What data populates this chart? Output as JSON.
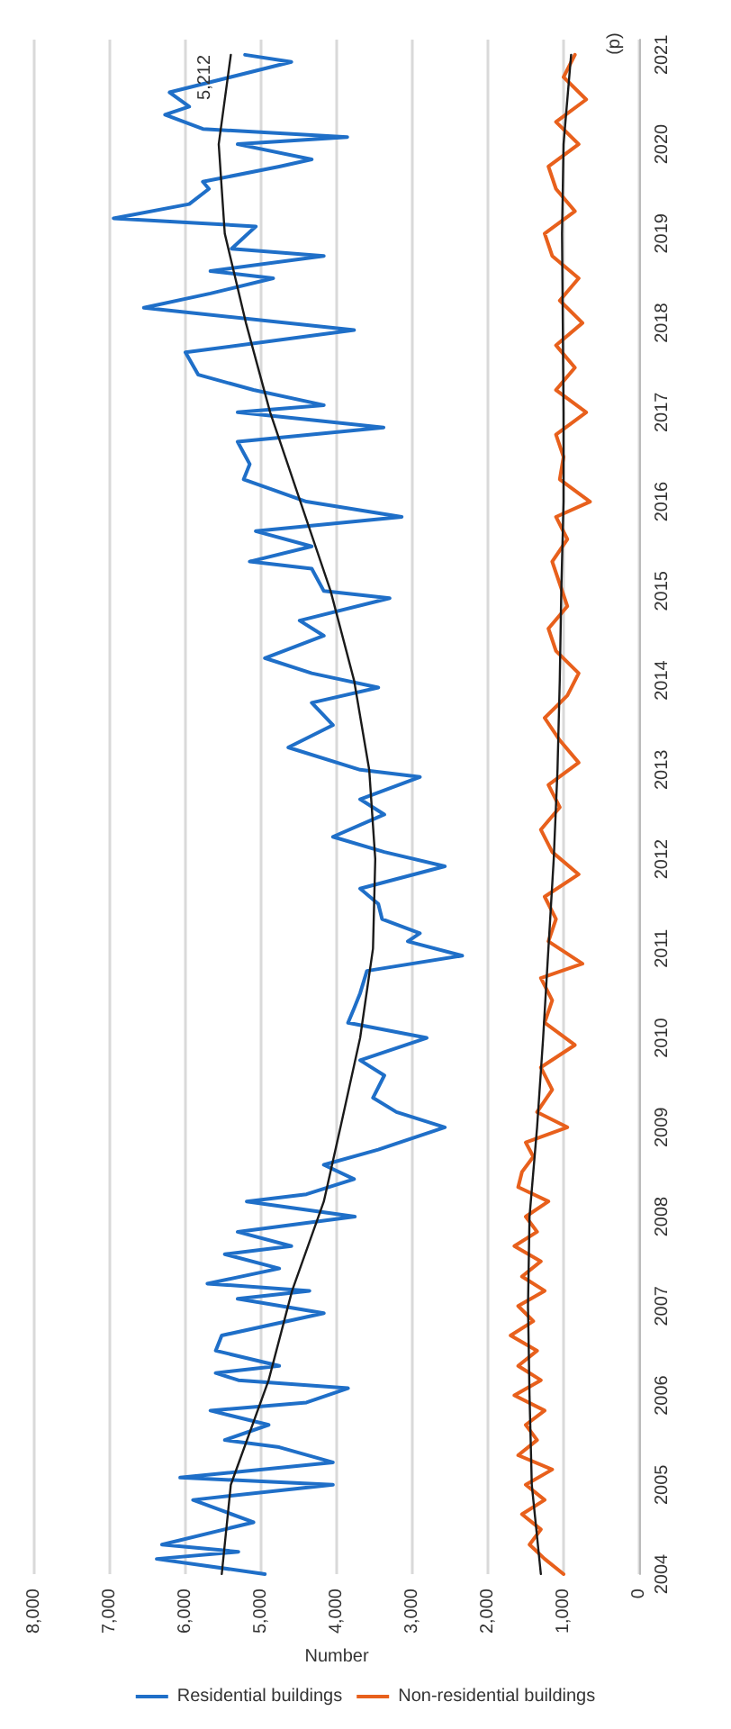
{
  "chart_data": {
    "type": "line",
    "xlabel": "Number",
    "legend": "bottom",
    "grid": "x",
    "marker": "none",
    "line_style": "solid",
    "xlim": [
      8000,
      0
    ],
    "xticks": [
      {
        "value": 8000,
        "label": "8,000"
      },
      {
        "value": 7000,
        "label": "7,000"
      },
      {
        "value": 6000,
        "label": "6,000"
      },
      {
        "value": 5000,
        "label": "5,000"
      },
      {
        "value": 4000,
        "label": "4,000"
      },
      {
        "value": 3000,
        "label": "3,000"
      },
      {
        "value": 2000,
        "label": "2,000"
      },
      {
        "value": 1000,
        "label": "1,000"
      },
      0
    ],
    "ylim": [
      2004,
      2021.17
    ],
    "yticks": [
      2004,
      2005,
      2006,
      2007,
      2008,
      2009,
      2010,
      2011,
      2012,
      2013,
      2014,
      2015,
      2016,
      2017,
      2018,
      2019,
      2020,
      2021
    ],
    "annotations": [
      {
        "text": "5,212",
        "x": 5212,
        "y": 2021
      },
      {
        "text": "(p)",
        "x": 850,
        "y": 2021
      }
    ],
    "series": [
      {
        "name": "Residential buildings",
        "color": "#1f6fc8",
        "x": [
          4950,
          6380,
          5300,
          6310,
          5100,
          5900,
          4050,
          6070,
          4050,
          4760,
          5480,
          4900,
          5670,
          4400,
          3850,
          5300,
          5600,
          4760,
          5600,
          5520,
          4170,
          5310,
          4360,
          5710,
          4760,
          5480,
          4600,
          5310,
          3760,
          5190,
          4400,
          3770,
          4170,
          3450,
          2570,
          3210,
          3520,
          3370,
          3690,
          2810,
          3850,
          3770,
          3690,
          3600,
          2340,
          3060,
          2900,
          3400,
          3450,
          3690,
          2570,
          3370,
          4050,
          3370,
          3690,
          2900,
          3690,
          4640,
          4050,
          4330,
          3450,
          4330,
          4950,
          4170,
          4490,
          3300,
          4170,
          4330,
          5150,
          4330,
          5070,
          3140,
          4400,
          5230,
          5150,
          5310,
          3380,
          5310,
          4170,
          5100,
          5830,
          6000,
          3770,
          6550,
          5670,
          4840,
          5670,
          4170,
          5390,
          5070,
          6950,
          5950,
          5690,
          5770,
          4760,
          4330,
          5310,
          3860,
          5770,
          6270,
          5950,
          6210,
          4600,
          5212
        ],
        "values": [
          2004,
          2004.17,
          2004.25,
          2004.33,
          2004.58,
          2004.83,
          2005,
          2005.08,
          2005.25,
          2005.42,
          2005.5,
          2005.67,
          2005.83,
          2005.92,
          2006.08,
          2006.17,
          2006.25,
          2006.33,
          2006.5,
          2006.67,
          2006.92,
          2007.08,
          2007.17,
          2007.25,
          2007.42,
          2007.58,
          2007.67,
          2007.83,
          2008,
          2008.17,
          2008.25,
          2008.42,
          2008.58,
          2008.75,
          2009,
          2009.17,
          2009.33,
          2009.58,
          2009.75,
          2010,
          2010.17,
          2010.33,
          2010.5,
          2010.75,
          2010.92,
          2011.08,
          2011.17,
          2011.33,
          2011.5,
          2011.67,
          2011.92,
          2012.08,
          2012.25,
          2012.5,
          2012.67,
          2012.92,
          2013,
          2013.25,
          2013.5,
          2013.75,
          2013.92,
          2014.08,
          2014.25,
          2014.5,
          2014.67,
          2014.92,
          2015,
          2015.25,
          2015.33,
          2015.5,
          2015.67,
          2015.83,
          2016,
          2016.25,
          2016.42,
          2016.67,
          2016.83,
          2017,
          2017.08,
          2017.25,
          2017.42,
          2017.67,
          2017.92,
          2018.17,
          2018.33,
          2018.5,
          2018.58,
          2018.75,
          2018.83,
          2019.08,
          2019.17,
          2019.33,
          2019.5,
          2019.58,
          2019.75,
          2019.83,
          2020,
          2020.08,
          2020.17,
          2020.33,
          2020.42,
          2020.58,
          2020.92,
          2021
        ]
      },
      {
        "name": "Non-residential buildings",
        "color": "#e8601c",
        "x": [
          1000,
          1250,
          1450,
          1300,
          1550,
          1250,
          1500,
          1150,
          1600,
          1350,
          1500,
          1250,
          1650,
          1300,
          1600,
          1350,
          1700,
          1400,
          1600,
          1250,
          1550,
          1300,
          1650,
          1350,
          1500,
          1200,
          1600,
          1550,
          1400,
          1500,
          950,
          1350,
          1150,
          1300,
          850,
          1250,
          1150,
          1300,
          750,
          1200,
          1100,
          1250,
          800,
          1150,
          1300,
          1050,
          1200,
          800,
          1050,
          1250,
          950,
          800,
          1100,
          1200,
          950,
          1050,
          1150,
          950,
          1100,
          650,
          1050,
          1000,
          1100,
          700,
          1100,
          850,
          1100,
          750,
          1050,
          800,
          1150,
          1250,
          850,
          1100,
          1200,
          800,
          1100,
          700,
          1000,
          850
        ],
        "values": [
          2004,
          2004.17,
          2004.33,
          2004.5,
          2004.67,
          2004.83,
          2005,
          2005.17,
          2005.33,
          2005.5,
          2005.67,
          2005.83,
          2006,
          2006.17,
          2006.33,
          2006.5,
          2006.67,
          2006.83,
          2007,
          2007.17,
          2007.33,
          2007.5,
          2007.67,
          2007.83,
          2008,
          2008.17,
          2008.33,
          2008.5,
          2008.67,
          2008.83,
          2009,
          2009.17,
          2009.42,
          2009.67,
          2009.92,
          2010.17,
          2010.42,
          2010.67,
          2010.83,
          2011.08,
          2011.33,
          2011.58,
          2011.83,
          2012.08,
          2012.33,
          2012.58,
          2012.83,
          2013.08,
          2013.33,
          2013.58,
          2013.83,
          2014.08,
          2014.33,
          2014.58,
          2014.83,
          2015.08,
          2015.33,
          2015.58,
          2015.83,
          2016,
          2016.25,
          2016.5,
          2016.75,
          2017,
          2017.25,
          2017.5,
          2017.75,
          2018,
          2018.25,
          2018.5,
          2018.75,
          2019,
          2019.25,
          2019.5,
          2019.75,
          2020,
          2020.25,
          2020.5,
          2020.75,
          2021
        ]
      },
      {
        "type": "line",
        "color": "#1a1a1a",
        "x": [
          5520,
          5400,
          4900,
          4590,
          4170,
          3950,
          3690,
          3520,
          3490,
          3570,
          3770,
          4080,
          4480,
          4880,
          5200,
          5480,
          5560,
          5400
        ],
        "values": [
          2004,
          2005,
          2006.17,
          2007.17,
          2008.17,
          2009,
          2010,
          2011,
          2012,
          2013,
          2014,
          2015,
          2016,
          2017,
          2018,
          2019,
          2020,
          2021
        ]
      },
      {
        "type": "line",
        "color": "#1a1a1a",
        "x": [
          1300,
          1420,
          1450,
          1470,
          1450,
          1350,
          1270,
          1200,
          1130,
          1080,
          1050,
          1030,
          1000,
          1000,
          1010,
          1020,
          1000,
          900
        ],
        "values": [
          2004,
          2005,
          2006,
          2007,
          2008,
          2009,
          2010,
          2011,
          2012,
          2013,
          2014,
          2015,
          2016,
          2017,
          2018,
          2019,
          2020,
          2021
        ]
      }
    ]
  }
}
